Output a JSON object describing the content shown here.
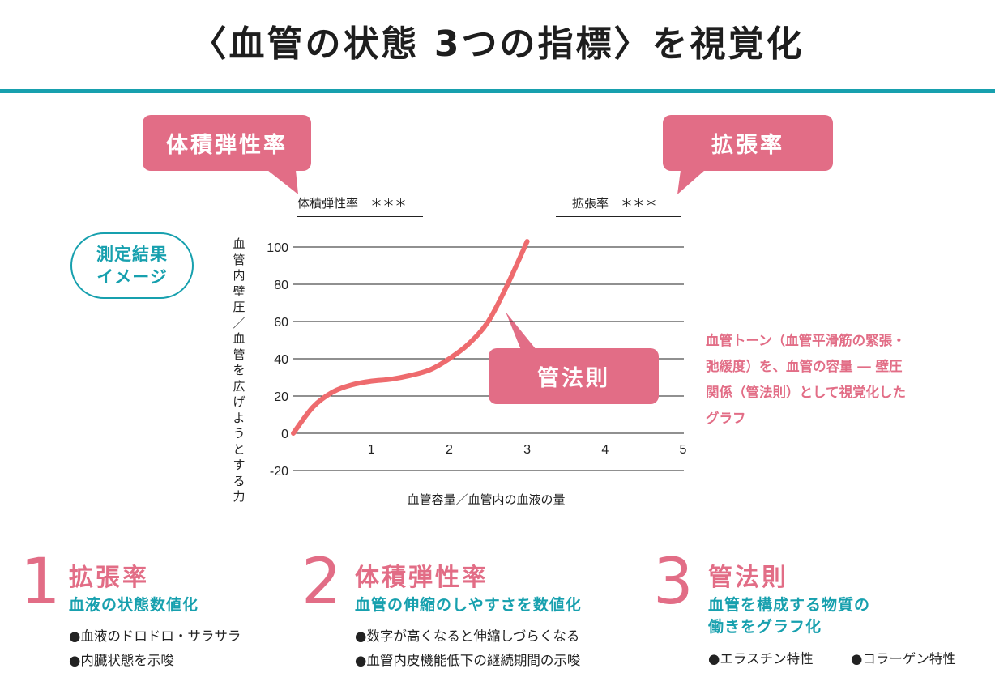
{
  "header": {
    "title": "〈血管の状態 3つの指標〉を視覚化",
    "rule_color": "#17a0ae"
  },
  "colors": {
    "pink": "#e26d86",
    "curve": "#ee6b6e",
    "teal": "#17a0ae",
    "text": "#222222"
  },
  "callouts": {
    "volume_elasticity": "体積弾性率",
    "dilation": "拡張率",
    "tube_law": "管法則"
  },
  "score_lines": {
    "volume_elasticity": "体積弾性率　＊＊＊",
    "dilation": "拡張率　＊＊＊"
  },
  "badge": {
    "line1": "測定結果",
    "line2": "イメージ"
  },
  "side_note": "血管トーン（血管平滑筋の緊張・弛緩度）を、血管の容量 ― 壁圧関係（管法則）として視覚化したグラフ",
  "chart_data": {
    "type": "line",
    "title": "",
    "xlabel": "血管容量／血管内の血液の量",
    "ylabel": "血管内壁圧／血管を広げようとする力",
    "x_ticks": [
      1,
      2,
      3,
      4,
      5
    ],
    "y_ticks": [
      100,
      80,
      60,
      40,
      20,
      0,
      -20
    ],
    "xlim": [
      0,
      5
    ],
    "ylim": [
      -20,
      100
    ],
    "grid": "horizontal",
    "series": [
      {
        "name": "管法則",
        "x": [
          0,
          0.25,
          0.5,
          0.75,
          1.0,
          1.25,
          1.5,
          1.75,
          2.0,
          2.25,
          2.5,
          2.75,
          3.0
        ],
        "y": [
          0,
          14,
          22,
          26,
          28,
          29,
          31,
          34,
          40,
          48,
          60,
          80,
          103
        ]
      }
    ],
    "annotations": [
      "管法則",
      "体積弾性率 ＊＊＊",
      "拡張率 ＊＊＊"
    ]
  },
  "features": [
    {
      "number": "1",
      "title": "拡張率",
      "subtitle_lines": [
        "血液の状態数値化"
      ],
      "items": [
        "●血液のドロドロ・サラサラ",
        "●内臓状態を示唆"
      ]
    },
    {
      "number": "2",
      "title": "体積弾性率",
      "subtitle_lines": [
        "血管の伸縮のしやすさを数値化"
      ],
      "items": [
        "●数字が高くなると伸縮しづらくなる",
        "●血管内皮機能低下の継続期間の示唆"
      ]
    },
    {
      "number": "3",
      "title": "管法則",
      "subtitle_lines": [
        "血管を構成する物質の",
        "働きをグラフ化"
      ],
      "items": [
        "●エラスチン特性",
        "●コラーゲン特性"
      ]
    }
  ]
}
